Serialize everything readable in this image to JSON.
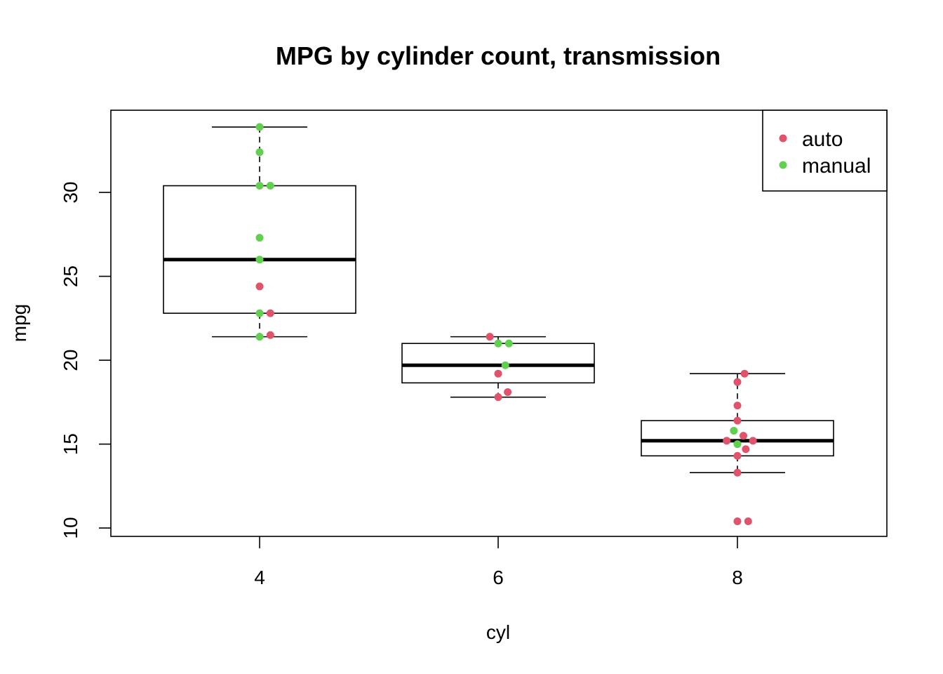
{
  "chart_data": {
    "type": "boxplot",
    "title": "MPG by cylinder count, transmission",
    "xlabel": "cyl",
    "ylabel": "mpg",
    "categories": [
      "4",
      "6",
      "8"
    ],
    "ylim": [
      9.5,
      34.9
    ],
    "yticks": [
      10,
      15,
      20,
      25,
      30
    ],
    "grid": false,
    "legend_position": "top-right",
    "boxes": [
      {
        "category": "4",
        "whisker_low": 21.4,
        "q1": 22.8,
        "median": 26.0,
        "q3": 30.4,
        "whisker_high": 33.9
      },
      {
        "category": "6",
        "whisker_low": 17.8,
        "q1": 18.65,
        "median": 19.7,
        "q3": 21.0,
        "whisker_high": 21.4
      },
      {
        "category": "8",
        "whisker_low": 13.3,
        "q1": 14.3,
        "median": 15.2,
        "q3": 16.4,
        "whisker_high": 19.2
      }
    ],
    "series": [
      {
        "name": "auto",
        "color": "#DF536B",
        "points": [
          {
            "x": 4,
            "y": 24.4,
            "jitter": 0.0
          },
          {
            "x": 4,
            "y": 22.8,
            "jitter": 0.09
          },
          {
            "x": 4,
            "y": 21.5,
            "jitter": 0.09
          },
          {
            "x": 6,
            "y": 21.4,
            "jitter": -0.07
          },
          {
            "x": 6,
            "y": 19.2,
            "jitter": 0.0
          },
          {
            "x": 6,
            "y": 18.1,
            "jitter": 0.08
          },
          {
            "x": 6,
            "y": 17.8,
            "jitter": 0.0
          },
          {
            "x": 8,
            "y": 19.2,
            "jitter": 0.06
          },
          {
            "x": 8,
            "y": 18.7,
            "jitter": 0.0
          },
          {
            "x": 8,
            "y": 17.3,
            "jitter": 0.0
          },
          {
            "x": 8,
            "y": 16.4,
            "jitter": 0.0
          },
          {
            "x": 8,
            "y": 15.5,
            "jitter": 0.05
          },
          {
            "x": 8,
            "y": 15.2,
            "jitter": -0.09
          },
          {
            "x": 8,
            "y": 15.2,
            "jitter": 0.13
          },
          {
            "x": 8,
            "y": 14.7,
            "jitter": 0.07
          },
          {
            "x": 8,
            "y": 14.3,
            "jitter": 0.0
          },
          {
            "x": 8,
            "y": 13.3,
            "jitter": 0.0
          },
          {
            "x": 8,
            "y": 10.4,
            "jitter": 0.0
          },
          {
            "x": 8,
            "y": 10.4,
            "jitter": 0.09
          }
        ]
      },
      {
        "name": "manual",
        "color": "#61D04F",
        "points": [
          {
            "x": 4,
            "y": 33.9,
            "jitter": 0.0
          },
          {
            "x": 4,
            "y": 32.4,
            "jitter": 0.0
          },
          {
            "x": 4,
            "y": 30.4,
            "jitter": 0.0
          },
          {
            "x": 4,
            "y": 30.4,
            "jitter": 0.09
          },
          {
            "x": 4,
            "y": 27.3,
            "jitter": 0.0
          },
          {
            "x": 4,
            "y": 26.0,
            "jitter": 0.0
          },
          {
            "x": 4,
            "y": 22.8,
            "jitter": 0.0
          },
          {
            "x": 4,
            "y": 21.4,
            "jitter": 0.0
          },
          {
            "x": 6,
            "y": 21.0,
            "jitter": 0.0
          },
          {
            "x": 6,
            "y": 21.0,
            "jitter": 0.09
          },
          {
            "x": 6,
            "y": 19.7,
            "jitter": 0.06
          },
          {
            "x": 8,
            "y": 15.8,
            "jitter": -0.03
          },
          {
            "x": 8,
            "y": 15.0,
            "jitter": 0.0
          }
        ]
      }
    ]
  }
}
